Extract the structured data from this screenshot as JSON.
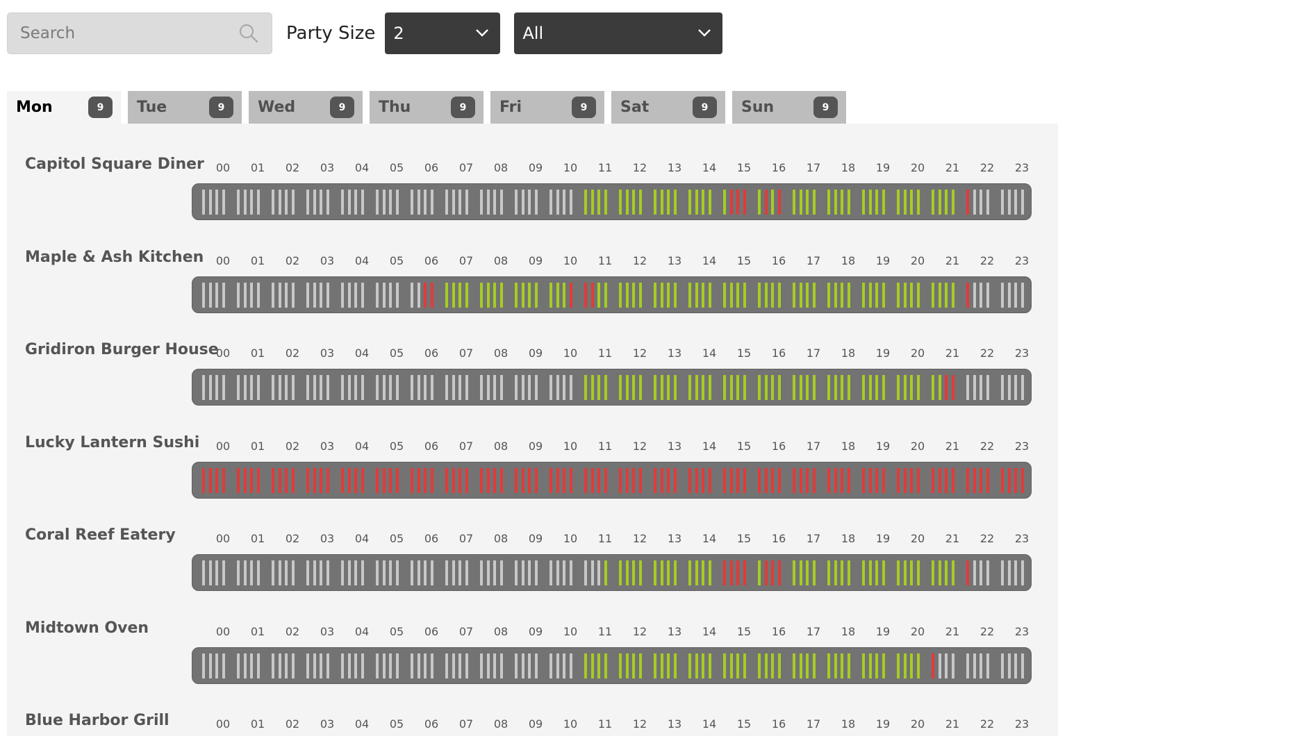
{
  "search": {
    "placeholder": "Search",
    "value": ""
  },
  "party": {
    "label": "Party Size",
    "value": "2"
  },
  "filter": {
    "value": "All"
  },
  "tabs": [
    {
      "label": "Mon",
      "count": "9",
      "active": true
    },
    {
      "label": "Tue",
      "count": "9",
      "active": false
    },
    {
      "label": "Wed",
      "count": "9",
      "active": false
    },
    {
      "label": "Thu",
      "count": "9",
      "active": false
    },
    {
      "label": "Fri",
      "count": "9",
      "active": false
    },
    {
      "label": "Sat",
      "count": "9",
      "active": false
    },
    {
      "label": "Sun",
      "count": "9",
      "active": false
    }
  ],
  "hours": [
    "00",
    "01",
    "02",
    "03",
    "04",
    "05",
    "06",
    "07",
    "08",
    "09",
    "10",
    "11",
    "12",
    "13",
    "14",
    "15",
    "16",
    "17",
    "18",
    "19",
    "20",
    "21",
    "22",
    "23"
  ],
  "colors": {
    "closed": "#c8c8c8",
    "open": "#a6cd22",
    "booked": "#e23a3a",
    "bar": "#737373"
  },
  "restaurants": [
    {
      "name": "Capitol Square Diner",
      "slots": [
        "cccc",
        "cccc",
        "cccc",
        "cccc",
        "cccc",
        "cccc",
        "cccc",
        "cccc",
        "cccc",
        "cccc",
        "cccc",
        "oooo",
        "oooo",
        "oooo",
        "oooo",
        "obbb",
        "obob",
        "oooo",
        "oooo",
        "oooo",
        "oooo",
        "oooo",
        "bccc",
        "cccc"
      ]
    },
    {
      "name": "Maple & Ash Kitchen",
      "slots": [
        "cccc",
        "cccc",
        "cccc",
        "cccc",
        "cccc",
        "cccc",
        "ccbb",
        "oooo",
        "oooo",
        "oooo",
        "ooob",
        "bboo",
        "oooo",
        "oooo",
        "oooo",
        "oooo",
        "oooo",
        "oooo",
        "oooo",
        "oooo",
        "oooo",
        "oooo",
        "bccc",
        "cccc"
      ]
    },
    {
      "name": "Gridiron Burger House",
      "slots": [
        "cccc",
        "cccc",
        "cccc",
        "cccc",
        "cccc",
        "cccc",
        "cccc",
        "cccc",
        "cccc",
        "cccc",
        "cccc",
        "oooo",
        "oooo",
        "oooo",
        "oooo",
        "oooo",
        "oooo",
        "oooo",
        "oooo",
        "oooo",
        "oooo",
        "oobb",
        "cccc",
        "cccc"
      ]
    },
    {
      "name": "Lucky Lantern Sushi",
      "slots": [
        "bbbb",
        "bbbb",
        "bbbb",
        "bbbb",
        "bbbb",
        "bbbb",
        "bbbb",
        "bbbb",
        "bbbb",
        "bbbb",
        "bbbb",
        "bbbb",
        "bbbb",
        "bbbb",
        "bbbb",
        "bbbb",
        "bbbb",
        "bbbb",
        "bbbb",
        "bbbb",
        "bbbb",
        "bbbb",
        "bbbb",
        "bbbb"
      ]
    },
    {
      "name": "Coral Reef Eatery",
      "slots": [
        "cccc",
        "cccc",
        "cccc",
        "cccc",
        "cccc",
        "cccc",
        "cccc",
        "cccc",
        "cccc",
        "cccc",
        "cccc",
        "ccco",
        "oooo",
        "oooo",
        "oooo",
        "bbbb",
        "obbb",
        "oooo",
        "oooo",
        "oooo",
        "oooo",
        "oooo",
        "bccc",
        "cccc"
      ]
    },
    {
      "name": "Midtown Oven",
      "slots": [
        "cccc",
        "cccc",
        "cccc",
        "cccc",
        "cccc",
        "cccc",
        "cccc",
        "cccc",
        "cccc",
        "cccc",
        "cccc",
        "oooo",
        "oooo",
        "oooo",
        "oooo",
        "oooo",
        "oooo",
        "oooo",
        "oooo",
        "oooo",
        "oooo",
        "bccc",
        "cccc",
        "cccc"
      ]
    },
    {
      "name": "Blue Harbor Grill",
      "slots": []
    }
  ]
}
